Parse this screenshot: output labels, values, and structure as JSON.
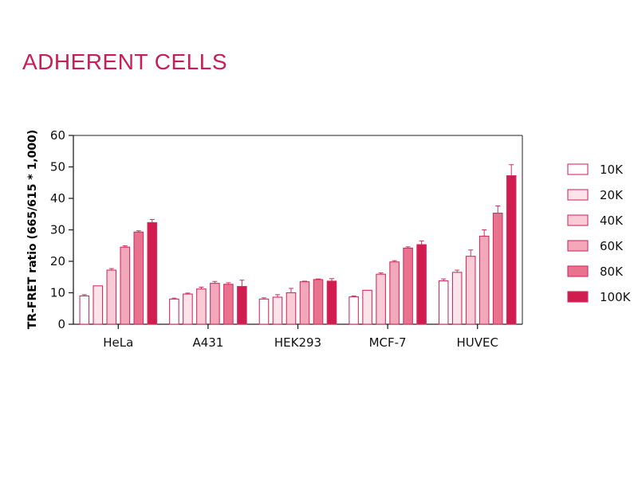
{
  "page": {
    "title": "ADHERENT CELLS"
  },
  "colors": {
    "title": "#c61f55",
    "axis": "#222222",
    "bar_stroke": "#d12f60",
    "series_fills": [
      "#ffffff",
      "#fde4ea",
      "#f9cbd7",
      "#f3a7ba",
      "#e9738f",
      "#d01c4f"
    ]
  },
  "chart_data": {
    "type": "bar",
    "title": "",
    "xlabel": "",
    "ylabel": "TR-FRET ratio (665/615 * 1,000)",
    "ylim": [
      0,
      60
    ],
    "yticks": [
      0,
      10,
      20,
      30,
      40,
      50,
      60
    ],
    "grid": false,
    "legend_position": "right",
    "categories": [
      "HeLa",
      "A431",
      "HEK293",
      "MCF-7",
      "HUVEC"
    ],
    "series": [
      {
        "name": "10K",
        "values": [
          9.0,
          8.0,
          8.0,
          8.7,
          13.8
        ],
        "errors": [
          0.4,
          0.3,
          0.4,
          0.3,
          0.6
        ]
      },
      {
        "name": "20K",
        "values": [
          12.2,
          9.6,
          8.6,
          10.8,
          16.5
        ],
        "errors": [
          0.0,
          0.3,
          0.8,
          0.0,
          0.7
        ]
      },
      {
        "name": "40K",
        "values": [
          17.2,
          11.2,
          10.0,
          15.9,
          21.6
        ],
        "errors": [
          0.5,
          0.6,
          1.4,
          0.4,
          2.0
        ]
      },
      {
        "name": "60K",
        "values": [
          24.5,
          13.0,
          13.5,
          19.8,
          28.0
        ],
        "errors": [
          0.4,
          0.6,
          0.2,
          0.4,
          2.0
        ]
      },
      {
        "name": "80K",
        "values": [
          29.3,
          12.7,
          14.2,
          24.2,
          35.3
        ],
        "errors": [
          0.4,
          0.5,
          0.2,
          0.4,
          2.3
        ]
      },
      {
        "name": "100K",
        "values": [
          32.3,
          12.0,
          13.7,
          25.3,
          47.2
        ],
        "errors": [
          1.0,
          2.0,
          0.8,
          1.2,
          3.5
        ]
      }
    ]
  }
}
